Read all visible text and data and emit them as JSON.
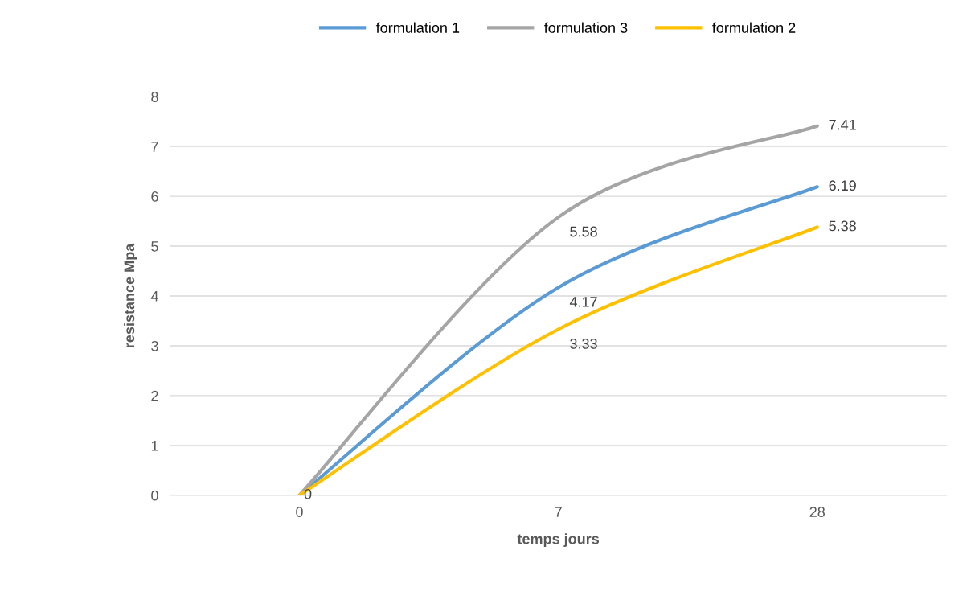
{
  "chart_data": {
    "type": "line",
    "xlabel": "temps jours",
    "ylabel": "resistance Mpa",
    "categories": [
      "0",
      "7",
      "28"
    ],
    "series": [
      {
        "name": "formulation 1",
        "color": "#5b9bd5",
        "values": [
          0,
          4.17,
          6.19
        ],
        "value_labels": [
          "0",
          "4.17",
          "6.19"
        ]
      },
      {
        "name": "formulation 3",
        "color": "#a5a5a5",
        "values": [
          0,
          5.58,
          7.41
        ],
        "value_labels": [
          null,
          "5.58",
          "7.41"
        ]
      },
      {
        "name": "formulation 2",
        "color": "#ffc000",
        "values": [
          0,
          3.33,
          5.38
        ],
        "value_labels": [
          null,
          "3.33",
          "5.38"
        ]
      }
    ],
    "ylim": [
      0,
      8
    ],
    "yticks": [
      0,
      1,
      2,
      3,
      4,
      5,
      6,
      7,
      8
    ],
    "grid": "y",
    "legend": "top",
    "marker": "none",
    "line_style": "solid"
  }
}
